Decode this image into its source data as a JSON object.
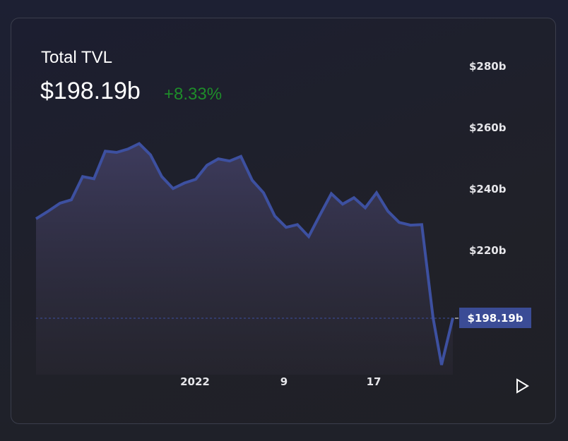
{
  "header": {
    "title": "Total TVL",
    "value": "$198.19b",
    "change": "+8.33%",
    "change_color": "#1e8c2a"
  },
  "price_tag": "$198.19b",
  "controls": {
    "play_icon": "play-icon"
  },
  "colors": {
    "line": "#3d50a0",
    "tag_bg": "#3b4c96",
    "dashed": "#3d50a0"
  },
  "chart_data": {
    "type": "area",
    "title": "Total TVL",
    "xlabel": "",
    "ylabel": "",
    "ylim": [
      185,
      285
    ],
    "y_ticks": [
      "$280b",
      "$260b",
      "$240b",
      "$220b"
    ],
    "x_ticks": [
      "2022",
      "9",
      "17"
    ],
    "grid": false,
    "legend": "none",
    "current_value_label": "$198.19b",
    "values": [
      230.6,
      232.9,
      235.7,
      236.8,
      244.4,
      243.7,
      252.7,
      252.3,
      253.4,
      255.2,
      251.5,
      244.4,
      240.5,
      242.3,
      243.5,
      248.1,
      250.2,
      249.5,
      251.0,
      243.2,
      239.1,
      231.5,
      227.8,
      228.7,
      224.8,
      231.9,
      238.8,
      235.4,
      237.5,
      234.2,
      239.1,
      233.1,
      229.4,
      228.5,
      228.7,
      198.2,
      182.8,
      198.2
    ]
  }
}
